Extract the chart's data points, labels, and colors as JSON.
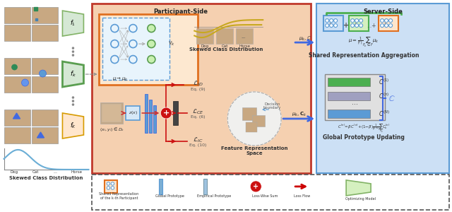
{
  "bg_color": "#ffffff",
  "participant_box_color": "#f5d0b0",
  "participant_border_color": "#c0392b",
  "server_box_color": "#cce0f5",
  "server_border_color": "#5b9bd5",
  "legend_border_color": "#555555",
  "participant_label": "Participant-Side",
  "server_label": "Server-Side",
  "skewed_dist_label": "Skewed Class Distribution",
  "skewed_dist_label_bottom": "Skewed Class Distribution",
  "feature_space_label": "Feature Representation\nSpace",
  "aggregation_label": "Shared Representation Aggregation",
  "prototype_label": "Global Prototype Updating",
  "eq9": "Eq. (9)",
  "eq6": "Eq. (6)",
  "eq10": "Eq. (10)",
  "legend_items": [
    "Shared Representation\nof the k-th Participant",
    "Global Prototype",
    "Empirical Prototype",
    "Loss-Wise Sum",
    "Loss Flow",
    "Optimizing Model"
  ],
  "node_color_blue": "#5b9bd5",
  "node_color_green": "#90ee90"
}
